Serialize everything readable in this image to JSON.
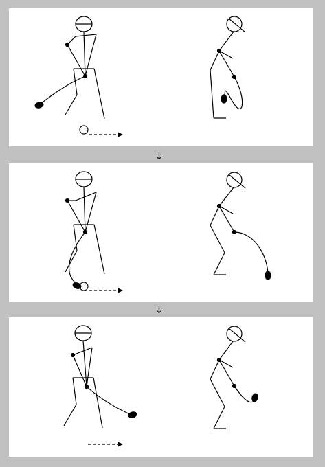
{
  "figure": {
    "panels": [
      {
        "step": 1,
        "ball_visible": true
      },
      {
        "step": 2,
        "ball_visible": true
      },
      {
        "step": 3,
        "ball_visible": false
      }
    ],
    "between_arrow": "↓",
    "colors": {
      "background": "#c0c0c0",
      "panel": "#ffffff",
      "ink": "#000000"
    }
  }
}
